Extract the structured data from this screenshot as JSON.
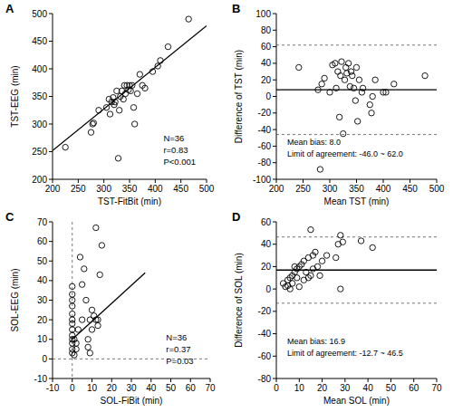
{
  "chart_data": [
    {
      "type": "scatter",
      "panel": "A",
      "marker": "circle",
      "xlabel": "TST-FitBit (min)",
      "ylabel": "TST-EEG (min)",
      "xlim": [
        200,
        500
      ],
      "xticks": [
        200,
        250,
        300,
        350,
        400,
        450,
        500
      ],
      "ylim": [
        200,
        500
      ],
      "yticks": [
        200,
        250,
        300,
        350,
        400,
        450,
        500
      ],
      "x": [
        225,
        275,
        278,
        280,
        290,
        305,
        310,
        312,
        315,
        318,
        320,
        322,
        325,
        328,
        330,
        332,
        335,
        338,
        340,
        342,
        345,
        348,
        350,
        352,
        355,
        358,
        360,
        365,
        370,
        375,
        380,
        395,
        405,
        410,
        425,
        465
      ],
      "y": [
        258,
        285,
        300,
        302,
        325,
        330,
        345,
        318,
        340,
        348,
        335,
        340,
        360,
        238,
        325,
        350,
        360,
        345,
        370,
        355,
        370,
        362,
        370,
        360,
        370,
        330,
        300,
        355,
        390,
        370,
        365,
        395,
        405,
        415,
        440,
        490
      ],
      "line": {
        "x": [
          200,
          500
        ],
        "y": [
          252,
          478
        ]
      },
      "annotations": [
        "N=36",
        "r=0.83",
        "P<0.001"
      ]
    },
    {
      "type": "scatter",
      "panel": "B",
      "marker": "circle",
      "xlabel": "Mean TST (min)",
      "ylabel": "Difference of TST (min)",
      "xlim": [
        200,
        500
      ],
      "xticks": [
        200,
        250,
        300,
        350,
        400,
        450,
        500
      ],
      "ylim": [
        -100,
        100
      ],
      "yticks": [
        -100,
        -80,
        -60,
        -40,
        -20,
        0,
        20,
        40,
        60,
        80,
        100
      ],
      "x": [
        242,
        278,
        282,
        285,
        290,
        300,
        305,
        310,
        312,
        315,
        318,
        320,
        322,
        325,
        328,
        330,
        332,
        335,
        338,
        340,
        342,
        345,
        348,
        350,
        352,
        355,
        360,
        362,
        375,
        378,
        380,
        385,
        400,
        405,
        420,
        478
      ],
      "y": [
        35,
        8,
        -88,
        15,
        22,
        5,
        38,
        40,
        10,
        30,
        -25,
        25,
        42,
        -45,
        20,
        35,
        28,
        40,
        12,
        30,
        25,
        10,
        -5,
        35,
        -30,
        20,
        5,
        10,
        -10,
        -20,
        0,
        20,
        5,
        5,
        15,
        25
      ],
      "bias": 8.0,
      "limits": [
        -46.0,
        62.0
      ],
      "annotations": [
        "Mean bias: 8.0",
        "Limit of agreement: -46.0 ~ 62.0"
      ]
    },
    {
      "type": "scatter",
      "panel": "C",
      "marker": "circle",
      "xlabel": "SOL-FiBit (min)",
      "ylabel": "SOL-EEG (min)",
      "xlim": [
        -10,
        70
      ],
      "xticks": [
        -10,
        0,
        10,
        20,
        30,
        40,
        50,
        60,
        70
      ],
      "ylim": [
        -10,
        70
      ],
      "yticks": [
        -10,
        0,
        10,
        20,
        30,
        40,
        50,
        60,
        70
      ],
      "x": [
        0,
        0,
        0,
        0,
        0,
        0,
        0,
        0,
        0,
        0,
        0,
        0,
        0,
        1,
        1,
        2,
        2,
        3,
        4,
        5,
        5,
        6,
        7,
        8,
        8,
        9,
        10,
        10,
        11,
        12,
        12,
        13,
        13,
        14,
        15,
        9
      ],
      "y": [
        37,
        33,
        30,
        27,
        23,
        20,
        18,
        15,
        12,
        10,
        8,
        5,
        3,
        10,
        2,
        8,
        5,
        15,
        52,
        38,
        20,
        46,
        30,
        10,
        6,
        20,
        25,
        15,
        22,
        20,
        67,
        20,
        17,
        43,
        58,
        3
      ],
      "line": {
        "x": [
          0,
          37
        ],
        "y": [
          10,
          44
        ]
      },
      "reference_lines": {
        "x": 0,
        "y": 0
      },
      "annotations": [
        "N=36",
        "r=0.37",
        "P=0.03"
      ]
    },
    {
      "type": "scatter",
      "panel": "D",
      "marker": "circle",
      "xlabel": "Mean SOL (min)",
      "ylabel": "Difference of SOL (min)",
      "xlim": [
        0,
        70
      ],
      "xticks": [
        0,
        10,
        20,
        30,
        40,
        50,
        60,
        70
      ],
      "ylim": [
        -80,
        60
      ],
      "yticks": [
        -80,
        -60,
        -40,
        -20,
        0,
        20,
        40,
        60
      ],
      "x": [
        3,
        4,
        5,
        5,
        6,
        6,
        7,
        7,
        8,
        8,
        9,
        9,
        10,
        10,
        11,
        12,
        12,
        13,
        14,
        14,
        15,
        15,
        16,
        16,
        17,
        18,
        19,
        20,
        22,
        26,
        27,
        28,
        28,
        29,
        37,
        42
      ],
      "y": [
        5,
        2,
        8,
        3,
        10,
        0,
        12,
        5,
        15,
        20,
        10,
        18,
        20,
        2,
        22,
        8,
        25,
        15,
        28,
        10,
        53,
        12,
        30,
        18,
        33,
        20,
        12,
        25,
        30,
        28,
        40,
        48,
        0,
        42,
        43,
        37
      ],
      "bias": 16.9,
      "limits": [
        -12.7,
        46.5
      ],
      "annotations": [
        "Mean bias: 16.9",
        "Limit of agreement: -12.7 ~ 46.5"
      ]
    }
  ]
}
